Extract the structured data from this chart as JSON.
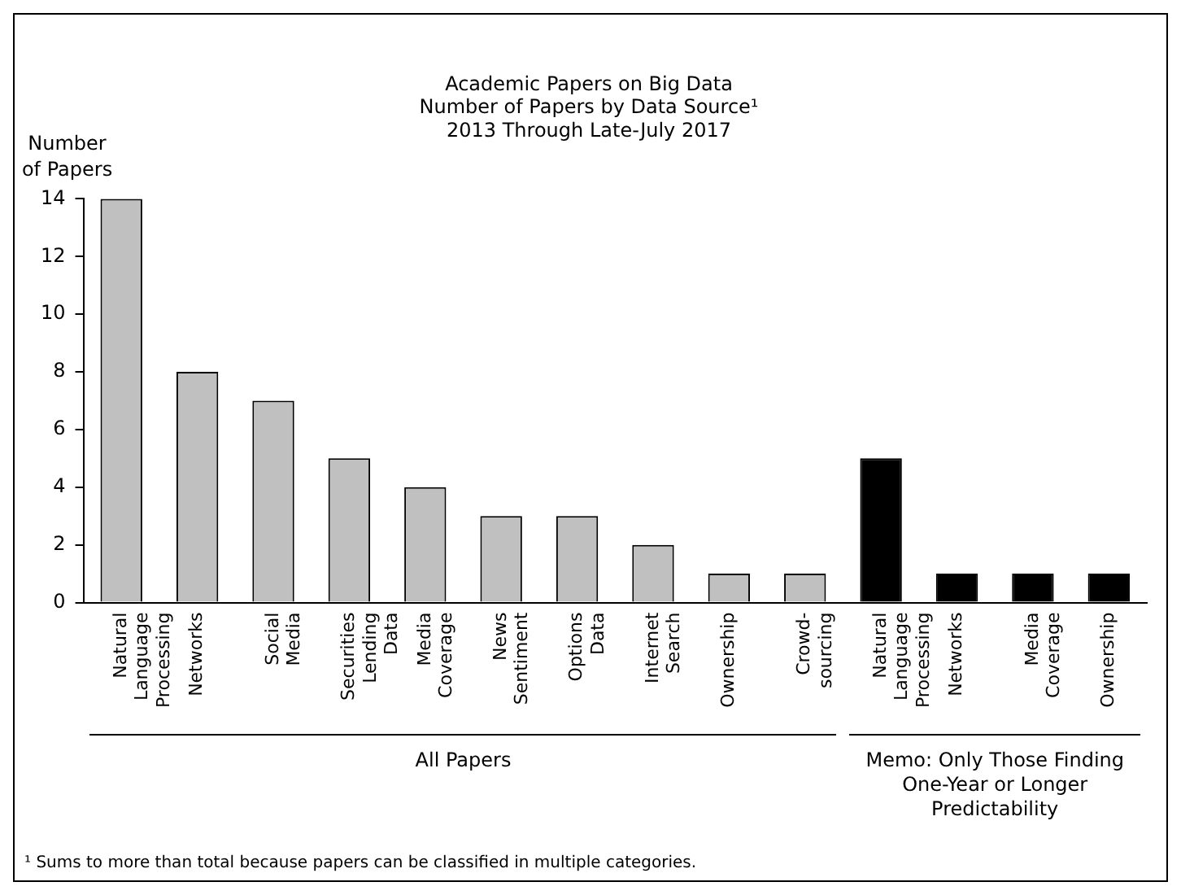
{
  "chart_data": {
    "type": "bar",
    "title": "Academic Papers on Big Data",
    "subtitle": "Number of Papers by Data Source¹\n2013 Through Late-July 2017",
    "ylabel": "Number of Papers",
    "categories": [
      "Natural Language Processing",
      "Networks",
      "Social Media",
      "Securities Lending Data",
      "Media Coverage",
      "News Sentiment",
      "Options Data",
      "Internet Search",
      "Ownership",
      "Crowd-sourcing",
      "Natural Language Processing",
      "Networks",
      "Media Coverage",
      "Ownership"
    ],
    "values": [
      14,
      8,
      7,
      5,
      4,
      3,
      3,
      2,
      1,
      1,
      5,
      1,
      1,
      1
    ],
    "colors": [
      "#c0c0c0",
      "#c0c0c0",
      "#c0c0c0",
      "#c0c0c0",
      "#c0c0c0",
      "#c0c0c0",
      "#c0c0c0",
      "#c0c0c0",
      "#c0c0c0",
      "#c0c0c0",
      "#000000",
      "#000000",
      "#000000",
      "#000000"
    ],
    "ylim": [
      0,
      14
    ],
    "yticks": [
      0,
      2,
      4,
      6,
      8,
      10,
      12,
      14
    ],
    "grid": false,
    "legend": false,
    "annotations": [
      "All Papers",
      "Memo: Only Those Finding One-Year or Longer Predictability",
      "¹ Sums to more than total because papers can be classified in multiple categories."
    ]
  }
}
